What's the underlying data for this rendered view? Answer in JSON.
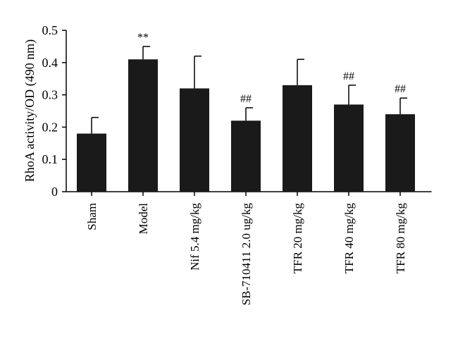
{
  "chart_data": {
    "type": "bar",
    "title": "",
    "xlabel": "",
    "ylabel": "RhoA activity/OD (490 nm)",
    "ylim": [
      0,
      0.5
    ],
    "yticks": [
      "0",
      "0.1",
      "0.2",
      "0.3",
      "0.4",
      "0.5"
    ],
    "yticks_values": [
      0,
      0.1,
      0.2,
      0.3,
      0.4,
      0.5
    ],
    "categories": [
      "Sham",
      "Model",
      "Nif 5.4 mg/kg",
      "SB-710411 2.0 ug/kg",
      "TFR 20 mg/kg",
      "TFR 40 mg/kg",
      "TFR 80 mg/kg"
    ],
    "values": [
      0.18,
      0.41,
      0.32,
      0.22,
      0.33,
      0.27,
      0.24
    ],
    "error_upper": [
      0.05,
      0.04,
      0.1,
      0.04,
      0.08,
      0.06,
      0.05
    ],
    "annotations": [
      "",
      "**",
      "",
      "##",
      "",
      "##",
      "##"
    ],
    "bar_color": "#1a1a1a",
    "grid": false,
    "legend": "none"
  }
}
